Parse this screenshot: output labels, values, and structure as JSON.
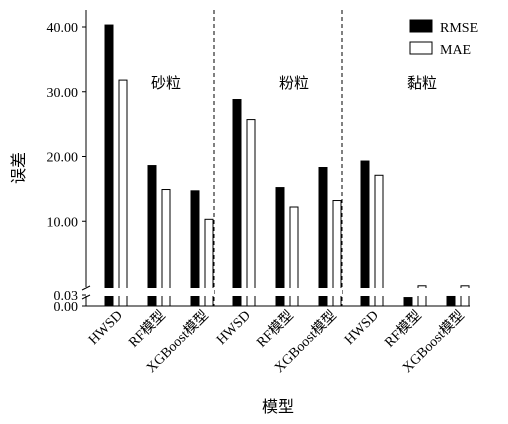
{
  "chart_data": {
    "type": "bar",
    "xlabel": "模型",
    "ylabel": "误差",
    "y_ticks": [
      "40.00",
      "30.00",
      "20.00",
      "10.00",
      "0.03",
      "0.00"
    ],
    "broken_axis": true,
    "grid": false,
    "legend_position": "top-right",
    "groups": [
      {
        "name": "砂粒",
        "categories": [
          "HWSD",
          "RF模型",
          "XGBoost模型"
        ]
      },
      {
        "name": "粉粒",
        "categories": [
          "HWSD",
          "RF模型",
          "XGBoost模型"
        ]
      },
      {
        "name": "黏粒",
        "categories": [
          "HWSD",
          "RF模型",
          "XGBoost模型"
        ]
      }
    ],
    "series": [
      {
        "name": "RMSE",
        "color": "#000000",
        "fill": "solid",
        "values": [
          40.3,
          18.6,
          14.7,
          28.8,
          15.2,
          18.3,
          19.3,
          0.023,
          0.026
        ]
      },
      {
        "name": "MAE",
        "color": "#ffffff",
        "fill": "outline",
        "values": [
          31.8,
          14.9,
          10.3,
          25.7,
          12.2,
          13.2,
          17.1,
          0.033,
          0.031
        ]
      }
    ]
  }
}
